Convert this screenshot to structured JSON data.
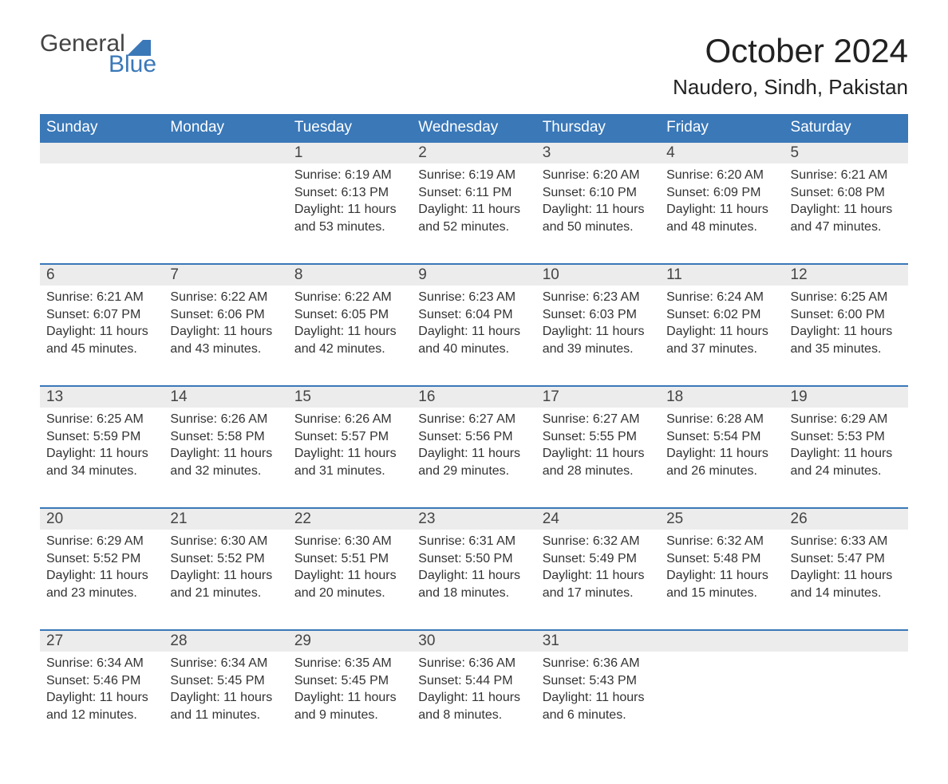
{
  "logo": {
    "top": "General",
    "bottom": "Blue"
  },
  "title": "October 2024",
  "location": "Naudero, Sindh, Pakistan",
  "colors": {
    "header_bg": "#3a78b8",
    "header_text": "#ffffff",
    "daynum_bg": "#ececec",
    "row_border": "#3a78b8",
    "body_text": "#333333",
    "page_bg": "#ffffff"
  },
  "days_of_week": [
    "Sunday",
    "Monday",
    "Tuesday",
    "Wednesday",
    "Thursday",
    "Friday",
    "Saturday"
  ],
  "weeks": [
    [
      null,
      null,
      {
        "n": "1",
        "sr": "Sunrise: 6:19 AM",
        "ss": "Sunset: 6:13 PM",
        "d1": "Daylight: 11 hours",
        "d2": "and 53 minutes."
      },
      {
        "n": "2",
        "sr": "Sunrise: 6:19 AM",
        "ss": "Sunset: 6:11 PM",
        "d1": "Daylight: 11 hours",
        "d2": "and 52 minutes."
      },
      {
        "n": "3",
        "sr": "Sunrise: 6:20 AM",
        "ss": "Sunset: 6:10 PM",
        "d1": "Daylight: 11 hours",
        "d2": "and 50 minutes."
      },
      {
        "n": "4",
        "sr": "Sunrise: 6:20 AM",
        "ss": "Sunset: 6:09 PM",
        "d1": "Daylight: 11 hours",
        "d2": "and 48 minutes."
      },
      {
        "n": "5",
        "sr": "Sunrise: 6:21 AM",
        "ss": "Sunset: 6:08 PM",
        "d1": "Daylight: 11 hours",
        "d2": "and 47 minutes."
      }
    ],
    [
      {
        "n": "6",
        "sr": "Sunrise: 6:21 AM",
        "ss": "Sunset: 6:07 PM",
        "d1": "Daylight: 11 hours",
        "d2": "and 45 minutes."
      },
      {
        "n": "7",
        "sr": "Sunrise: 6:22 AM",
        "ss": "Sunset: 6:06 PM",
        "d1": "Daylight: 11 hours",
        "d2": "and 43 minutes."
      },
      {
        "n": "8",
        "sr": "Sunrise: 6:22 AM",
        "ss": "Sunset: 6:05 PM",
        "d1": "Daylight: 11 hours",
        "d2": "and 42 minutes."
      },
      {
        "n": "9",
        "sr": "Sunrise: 6:23 AM",
        "ss": "Sunset: 6:04 PM",
        "d1": "Daylight: 11 hours",
        "d2": "and 40 minutes."
      },
      {
        "n": "10",
        "sr": "Sunrise: 6:23 AM",
        "ss": "Sunset: 6:03 PM",
        "d1": "Daylight: 11 hours",
        "d2": "and 39 minutes."
      },
      {
        "n": "11",
        "sr": "Sunrise: 6:24 AM",
        "ss": "Sunset: 6:02 PM",
        "d1": "Daylight: 11 hours",
        "d2": "and 37 minutes."
      },
      {
        "n": "12",
        "sr": "Sunrise: 6:25 AM",
        "ss": "Sunset: 6:00 PM",
        "d1": "Daylight: 11 hours",
        "d2": "and 35 minutes."
      }
    ],
    [
      {
        "n": "13",
        "sr": "Sunrise: 6:25 AM",
        "ss": "Sunset: 5:59 PM",
        "d1": "Daylight: 11 hours",
        "d2": "and 34 minutes."
      },
      {
        "n": "14",
        "sr": "Sunrise: 6:26 AM",
        "ss": "Sunset: 5:58 PM",
        "d1": "Daylight: 11 hours",
        "d2": "and 32 minutes."
      },
      {
        "n": "15",
        "sr": "Sunrise: 6:26 AM",
        "ss": "Sunset: 5:57 PM",
        "d1": "Daylight: 11 hours",
        "d2": "and 31 minutes."
      },
      {
        "n": "16",
        "sr": "Sunrise: 6:27 AM",
        "ss": "Sunset: 5:56 PM",
        "d1": "Daylight: 11 hours",
        "d2": "and 29 minutes."
      },
      {
        "n": "17",
        "sr": "Sunrise: 6:27 AM",
        "ss": "Sunset: 5:55 PM",
        "d1": "Daylight: 11 hours",
        "d2": "and 28 minutes."
      },
      {
        "n": "18",
        "sr": "Sunrise: 6:28 AM",
        "ss": "Sunset: 5:54 PM",
        "d1": "Daylight: 11 hours",
        "d2": "and 26 minutes."
      },
      {
        "n": "19",
        "sr": "Sunrise: 6:29 AM",
        "ss": "Sunset: 5:53 PM",
        "d1": "Daylight: 11 hours",
        "d2": "and 24 minutes."
      }
    ],
    [
      {
        "n": "20",
        "sr": "Sunrise: 6:29 AM",
        "ss": "Sunset: 5:52 PM",
        "d1": "Daylight: 11 hours",
        "d2": "and 23 minutes."
      },
      {
        "n": "21",
        "sr": "Sunrise: 6:30 AM",
        "ss": "Sunset: 5:52 PM",
        "d1": "Daylight: 11 hours",
        "d2": "and 21 minutes."
      },
      {
        "n": "22",
        "sr": "Sunrise: 6:30 AM",
        "ss": "Sunset: 5:51 PM",
        "d1": "Daylight: 11 hours",
        "d2": "and 20 minutes."
      },
      {
        "n": "23",
        "sr": "Sunrise: 6:31 AM",
        "ss": "Sunset: 5:50 PM",
        "d1": "Daylight: 11 hours",
        "d2": "and 18 minutes."
      },
      {
        "n": "24",
        "sr": "Sunrise: 6:32 AM",
        "ss": "Sunset: 5:49 PM",
        "d1": "Daylight: 11 hours",
        "d2": "and 17 minutes."
      },
      {
        "n": "25",
        "sr": "Sunrise: 6:32 AM",
        "ss": "Sunset: 5:48 PM",
        "d1": "Daylight: 11 hours",
        "d2": "and 15 minutes."
      },
      {
        "n": "26",
        "sr": "Sunrise: 6:33 AM",
        "ss": "Sunset: 5:47 PM",
        "d1": "Daylight: 11 hours",
        "d2": "and 14 minutes."
      }
    ],
    [
      {
        "n": "27",
        "sr": "Sunrise: 6:34 AM",
        "ss": "Sunset: 5:46 PM",
        "d1": "Daylight: 11 hours",
        "d2": "and 12 minutes."
      },
      {
        "n": "28",
        "sr": "Sunrise: 6:34 AM",
        "ss": "Sunset: 5:45 PM",
        "d1": "Daylight: 11 hours",
        "d2": "and 11 minutes."
      },
      {
        "n": "29",
        "sr": "Sunrise: 6:35 AM",
        "ss": "Sunset: 5:45 PM",
        "d1": "Daylight: 11 hours",
        "d2": "and 9 minutes."
      },
      {
        "n": "30",
        "sr": "Sunrise: 6:36 AM",
        "ss": "Sunset: 5:44 PM",
        "d1": "Daylight: 11 hours",
        "d2": "and 8 minutes."
      },
      {
        "n": "31",
        "sr": "Sunrise: 6:36 AM",
        "ss": "Sunset: 5:43 PM",
        "d1": "Daylight: 11 hours",
        "d2": "and 6 minutes."
      },
      null,
      null
    ]
  ]
}
